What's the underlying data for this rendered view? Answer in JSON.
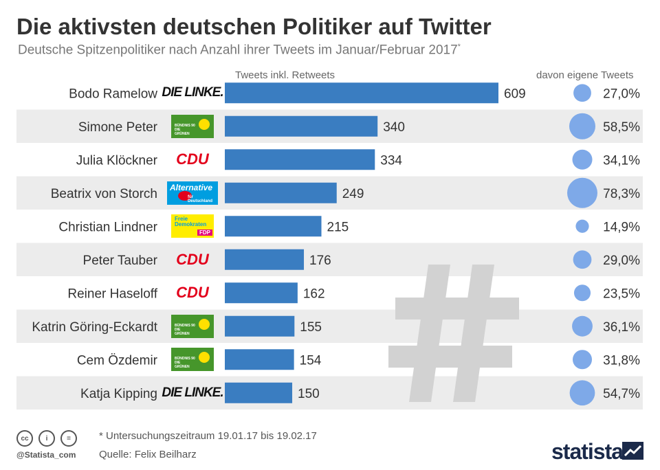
{
  "header": {
    "title": "Die aktivsten deutschen Politiker auf Twitter",
    "subtitle": "Deutsche Spitzenpolitiker nach Anzahl ihrer Tweets im Januar/Februar 2017",
    "subtitle_marker": "*"
  },
  "columns": {
    "bar_header": "Tweets inkl. Retweets",
    "share_header": "davon eigene Tweets"
  },
  "colors": {
    "bar": "#3a7dc1",
    "bubble": "#7ea9e8",
    "band": "#ececec",
    "hashtag": "#d2d2d2"
  },
  "parties": {
    "linke": "DIE LINKE.",
    "gruene": "BÜNDNIS 90 DIE GRÜNEN",
    "cdu": "CDU",
    "afd": "Alternative für Deutschland",
    "fdp": "Freie Demokraten FDP"
  },
  "chart_data": {
    "type": "bar",
    "orientation": "horizontal",
    "categories": [
      "Bodo Ramelow",
      "Simone Peter",
      "Julia Klöckner",
      "Beatrix von Storch",
      "Christian Lindner",
      "Peter Tauber",
      "Reiner Haseloff",
      "Katrin Göring-Eckardt",
      "Cem Özdemir",
      "Katja Kipping"
    ],
    "party": [
      "linke",
      "gruene",
      "cdu",
      "afd",
      "fdp",
      "cdu",
      "cdu",
      "gruene",
      "gruene",
      "linke"
    ],
    "series": [
      {
        "name": "Tweets inkl. Retweets",
        "values": [
          609,
          340,
          334,
          249,
          215,
          176,
          162,
          155,
          154,
          150
        ],
        "labels": [
          "609",
          "340",
          "334",
          "249",
          "215",
          "176",
          "162",
          "155",
          "154",
          "150"
        ]
      },
      {
        "name": "davon eigene Tweets",
        "values": [
          27.0,
          58.5,
          34.1,
          78.3,
          14.9,
          29.0,
          23.5,
          36.1,
          31.8,
          54.7
        ],
        "labels": [
          "27,0%",
          "58,5%",
          "34,1%",
          "78,3%",
          "14,9%",
          "29,0%",
          "23,5%",
          "36,1%",
          "31,8%",
          "54,7%"
        ]
      }
    ],
    "xlim": [
      0,
      609
    ],
    "grid": false,
    "legend": "none"
  },
  "footer": {
    "note": "* Untersuchungszeitraum 19.01.17 bis 19.02.17",
    "source": "Quelle: Felix Beilharz",
    "handle": "@Statista_com",
    "brand": "statista",
    "cc_icons": [
      "cc-icon",
      "by-icon",
      "nd-icon"
    ],
    "cc_glyphs": [
      "cc",
      "i",
      "="
    ]
  }
}
